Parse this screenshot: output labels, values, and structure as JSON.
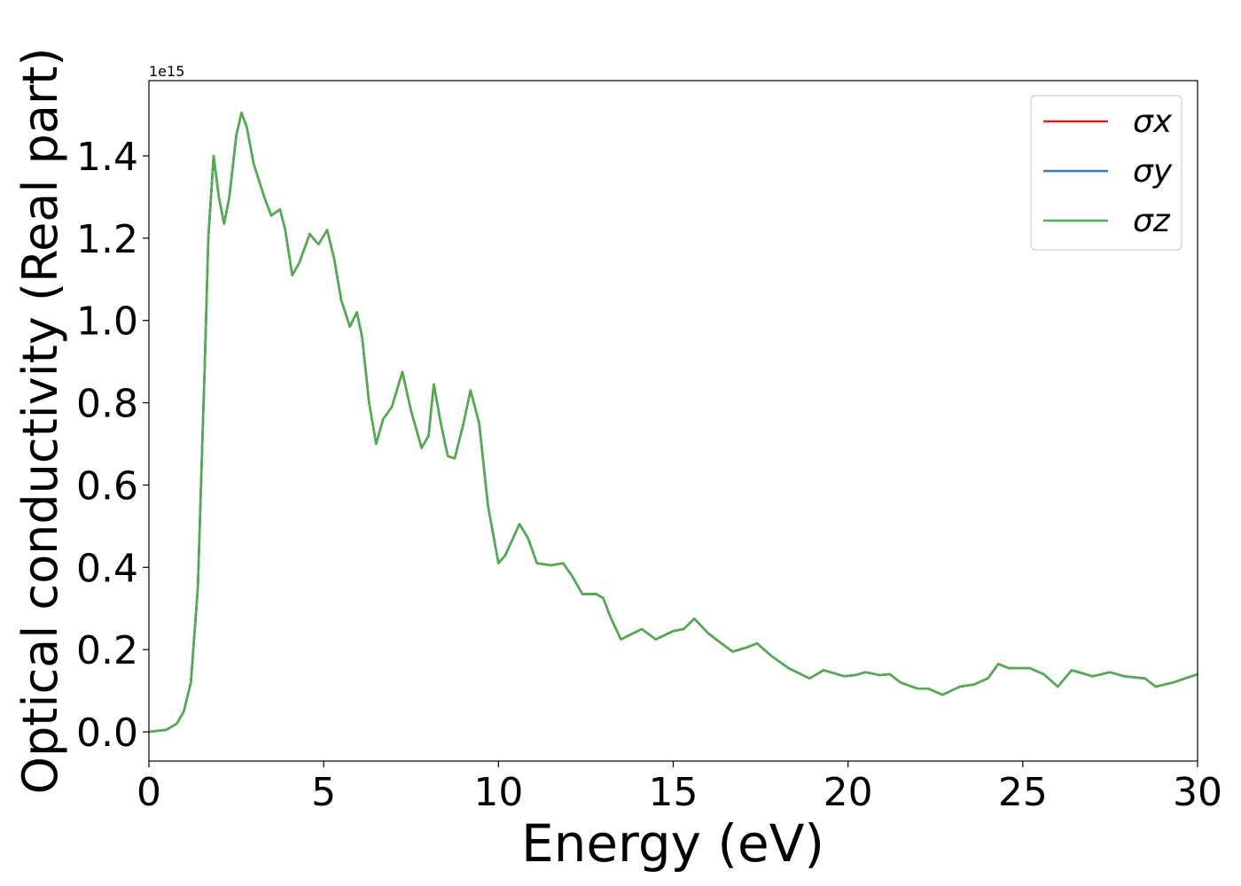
{
  "chart_data": {
    "type": "line",
    "y_label": "Optical conductivity (Real part)",
    "x_label": "Energy (eV)",
    "y_offset_text": "1e15",
    "x": [
      0,
      0.5,
      0.8,
      1.0,
      1.2,
      1.4,
      1.6,
      1.7,
      1.85,
      2.0,
      2.15,
      2.3,
      2.5,
      2.65,
      2.8,
      3.0,
      3.3,
      3.5,
      3.75,
      3.9,
      4.1,
      4.3,
      4.6,
      4.85,
      5.1,
      5.3,
      5.5,
      5.75,
      5.95,
      6.1,
      6.3,
      6.5,
      6.7,
      6.95,
      7.25,
      7.5,
      7.8,
      8.0,
      8.15,
      8.35,
      8.55,
      8.75,
      9.0,
      9.2,
      9.45,
      9.7,
      10.0,
      10.2,
      10.6,
      10.85,
      11.1,
      11.5,
      11.85,
      12.1,
      12.4,
      12.8,
      13.0,
      13.2,
      13.5,
      14.1,
      14.5,
      15.0,
      15.3,
      15.6,
      16.0,
      16.3,
      16.7,
      17.1,
      17.4,
      17.8,
      18.3,
      18.9,
      19.3,
      19.9,
      20.2,
      20.5,
      20.9,
      21.2,
      21.5,
      22.0,
      22.3,
      22.7,
      23.2,
      23.6,
      24.0,
      24.3,
      24.6,
      25.2,
      25.6,
      26.0,
      26.4,
      26.8,
      27.0,
      27.5,
      27.9,
      28.5,
      28.8,
      29.3,
      30.0
    ],
    "series": [
      {
        "name": "σx",
        "color": "#e41a1c",
        "values": [
          0,
          0.005,
          0.02,
          0.05,
          0.12,
          0.35,
          0.9,
          1.2,
          1.4,
          1.3,
          1.235,
          1.3,
          1.45,
          1.505,
          1.47,
          1.38,
          1.3,
          1.255,
          1.27,
          1.22,
          1.11,
          1.14,
          1.21,
          1.185,
          1.22,
          1.15,
          1.05,
          0.985,
          1.02,
          0.96,
          0.8,
          0.7,
          0.76,
          0.79,
          0.875,
          0.78,
          0.69,
          0.72,
          0.845,
          0.75,
          0.67,
          0.665,
          0.75,
          0.83,
          0.75,
          0.55,
          0.41,
          0.43,
          0.505,
          0.47,
          0.41,
          0.405,
          0.41,
          0.38,
          0.335,
          0.335,
          0.325,
          0.28,
          0.225,
          0.25,
          0.225,
          0.245,
          0.25,
          0.275,
          0.24,
          0.22,
          0.195,
          0.205,
          0.215,
          0.185,
          0.155,
          0.13,
          0.15,
          0.135,
          0.138,
          0.145,
          0.138,
          0.14,
          0.12,
          0.105,
          0.105,
          0.09,
          0.11,
          0.115,
          0.13,
          0.165,
          0.155,
          0.155,
          0.14,
          0.11,
          0.15,
          0.14,
          0.135,
          0.145,
          0.135,
          0.13,
          0.11,
          0.12,
          0.14
        ]
      },
      {
        "name": "σy",
        "color": "#377eb8",
        "values": [
          0,
          0.005,
          0.02,
          0.05,
          0.12,
          0.35,
          0.9,
          1.2,
          1.4,
          1.3,
          1.235,
          1.3,
          1.45,
          1.505,
          1.47,
          1.38,
          1.3,
          1.255,
          1.27,
          1.22,
          1.11,
          1.14,
          1.21,
          1.185,
          1.22,
          1.15,
          1.05,
          0.985,
          1.02,
          0.96,
          0.8,
          0.7,
          0.76,
          0.79,
          0.875,
          0.78,
          0.69,
          0.72,
          0.845,
          0.75,
          0.67,
          0.665,
          0.75,
          0.83,
          0.75,
          0.55,
          0.41,
          0.43,
          0.505,
          0.47,
          0.41,
          0.405,
          0.41,
          0.38,
          0.335,
          0.335,
          0.325,
          0.28,
          0.225,
          0.25,
          0.225,
          0.245,
          0.25,
          0.275,
          0.24,
          0.22,
          0.195,
          0.205,
          0.215,
          0.185,
          0.155,
          0.13,
          0.15,
          0.135,
          0.138,
          0.145,
          0.138,
          0.14,
          0.12,
          0.105,
          0.105,
          0.09,
          0.11,
          0.115,
          0.13,
          0.165,
          0.155,
          0.155,
          0.14,
          0.11,
          0.15,
          0.14,
          0.135,
          0.145,
          0.135,
          0.13,
          0.11,
          0.12,
          0.14
        ]
      },
      {
        "name": "σz",
        "color": "#4daf4a",
        "values": [
          0,
          0.005,
          0.02,
          0.05,
          0.12,
          0.35,
          0.9,
          1.2,
          1.4,
          1.3,
          1.235,
          1.3,
          1.45,
          1.505,
          1.47,
          1.38,
          1.3,
          1.255,
          1.27,
          1.22,
          1.11,
          1.14,
          1.21,
          1.185,
          1.22,
          1.15,
          1.05,
          0.985,
          1.02,
          0.96,
          0.8,
          0.7,
          0.76,
          0.79,
          0.875,
          0.78,
          0.69,
          0.72,
          0.845,
          0.75,
          0.67,
          0.665,
          0.75,
          0.83,
          0.75,
          0.55,
          0.41,
          0.43,
          0.505,
          0.47,
          0.41,
          0.405,
          0.41,
          0.38,
          0.335,
          0.335,
          0.325,
          0.28,
          0.225,
          0.25,
          0.225,
          0.245,
          0.25,
          0.275,
          0.24,
          0.22,
          0.195,
          0.205,
          0.215,
          0.185,
          0.155,
          0.13,
          0.15,
          0.135,
          0.138,
          0.145,
          0.138,
          0.14,
          0.12,
          0.105,
          0.105,
          0.09,
          0.11,
          0.115,
          0.13,
          0.165,
          0.155,
          0.155,
          0.14,
          0.11,
          0.15,
          0.14,
          0.135,
          0.145,
          0.135,
          0.13,
          0.11,
          0.12,
          0.14
        ]
      }
    ],
    "xlim": [
      0,
      30
    ],
    "xticks": [
      0,
      5,
      10,
      15,
      20,
      25,
      30
    ],
    "ylim": [
      -0.071,
      1.583
    ],
    "yticks": [
      {
        "value": 0,
        "label": "0.0"
      },
      0.2,
      0.4,
      0.6,
      0.8,
      {
        "value": 1,
        "label": "1.0"
      },
      1.2,
      1.4
    ],
    "legend": "upper right",
    "grid": false
  }
}
